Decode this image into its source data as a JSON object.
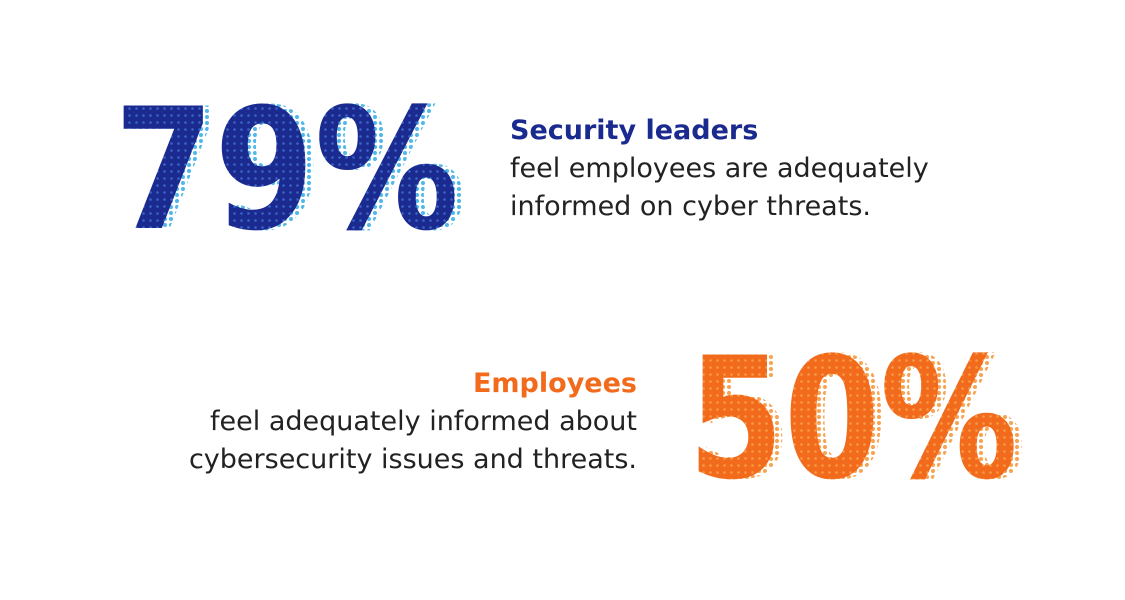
{
  "stats": [
    {
      "figure": "79%",
      "heading": "Security leaders",
      "lines": [
        "feel employees are adequately",
        "informed on cyber threats."
      ]
    },
    {
      "figure": "50%",
      "heading": "Employees",
      "lines": [
        "feel adequately informed about",
        "cybersecurity issues and threats."
      ]
    }
  ]
}
